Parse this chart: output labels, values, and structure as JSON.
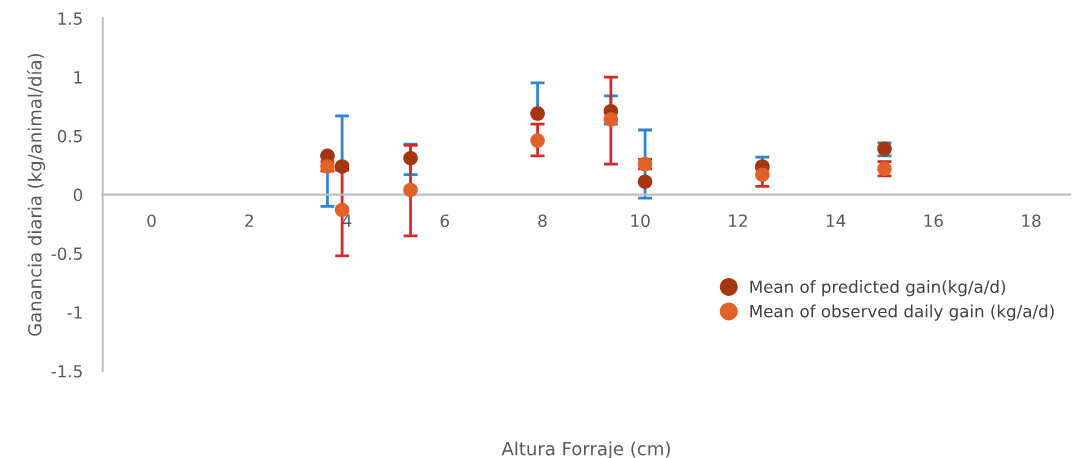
{
  "chart_data": {
    "type": "scatter",
    "xlabel": "Altura Forraje (cm)",
    "ylabel": "Ganancia diaria (kg/animal/día)",
    "xlim": [
      -1,
      18.8
    ],
    "ylim": [
      -1.5,
      1.5
    ],
    "xticks": [
      0,
      2,
      4,
      6,
      8,
      10,
      12,
      14,
      16,
      18
    ],
    "yticks": [
      -1.5,
      -1,
      -0.5,
      0,
      0.5,
      1,
      1.5
    ],
    "legend": "bottom right",
    "marker": "circle",
    "grid": false,
    "series": [
      {
        "name": "Mean of predicted gain(kg/a/d)",
        "color": "#a5360f",
        "x": [
          3.6,
          3.9,
          5.3,
          7.9,
          9.4,
          10.1,
          12.5,
          15
        ],
        "values": [
          0.33,
          0.24,
          0.31,
          0.69,
          0.71,
          0.11,
          0.24,
          0.39
        ],
        "errors": [
          [
            -0.1,
            0.33
          ],
          [
            0.21,
            0.67
          ],
          [
            0.17,
            0.43
          ],
          [
            0.69,
            0.95
          ],
          [
            0.6,
            0.84
          ],
          [
            -0.03,
            0.55
          ],
          [
            0.24,
            0.32
          ],
          [
            0.33,
            0.44
          ]
        ]
      },
      {
        "name": "Mean of observed daily gain (kg/a/d)",
        "color": "#e0622a",
        "x": [
          3.6,
          3.9,
          5.3,
          7.9,
          9.4,
          10.1,
          12.5,
          15
        ],
        "values": [
          0.24,
          -0.13,
          0.04,
          0.46,
          0.64,
          0.26,
          0.17,
          0.22
        ],
        "errors": [
          [
            0.2,
            0.28
          ],
          [
            -0.52,
            0.21
          ],
          [
            -0.35,
            0.42
          ],
          [
            0.33,
            0.6
          ],
          [
            0.26,
            1.0
          ],
          [
            0.22,
            0.3
          ],
          [
            0.07,
            0.22
          ],
          [
            0.16,
            0.28
          ]
        ]
      }
    ]
  }
}
